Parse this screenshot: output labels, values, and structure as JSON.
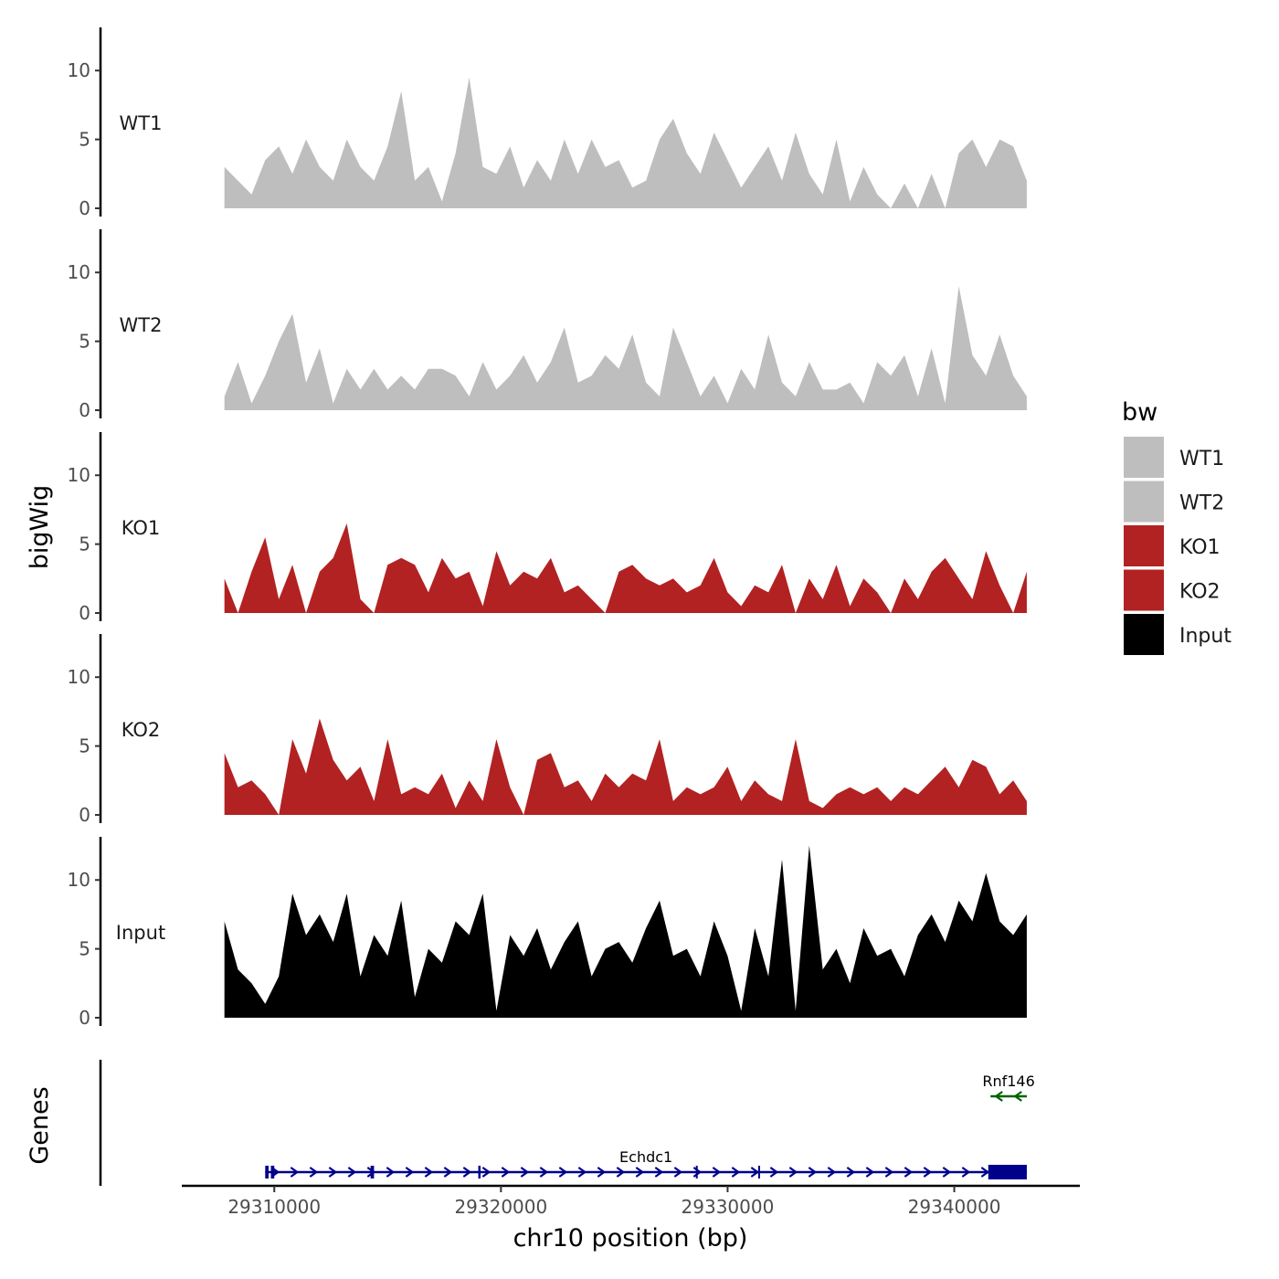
{
  "chart_data": {
    "type": "area",
    "title": "",
    "xlabel": "chr10 position (bp)",
    "ylabel": "bigWig",
    "gene_track_label": "Genes",
    "xlim": [
      29306000,
      29345500
    ],
    "ylim": [
      0,
      13
    ],
    "x_ticks": [
      29310000,
      29320000,
      29330000,
      29340000
    ],
    "x_tick_labels": [
      "29310000",
      "29320000",
      "29330000",
      "29340000"
    ],
    "y_ticks": [
      0,
      5,
      10
    ],
    "y_tick_labels": [
      "0",
      "5",
      "10"
    ],
    "x": [
      29307800,
      29308400,
      29309000,
      29309600,
      29310200,
      29310800,
      29311400,
      29312000,
      29312600,
      29313200,
      29313800,
      29314400,
      29315000,
      29315600,
      29316200,
      29316800,
      29317400,
      29318000,
      29318600,
      29319200,
      29319800,
      29320400,
      29321000,
      29321600,
      29322200,
      29322800,
      29323400,
      29324000,
      29324600,
      29325200,
      29325800,
      29326400,
      29327000,
      29327600,
      29328200,
      29328800,
      29329400,
      29330000,
      29330600,
      29331200,
      29331800,
      29332400,
      29333000,
      29333600,
      29334200,
      29334800,
      29335400,
      29336000,
      29336600,
      29337200,
      29337800,
      29338400,
      29339000,
      29339600,
      29340200,
      29340800,
      29341400,
      29342000,
      29342600,
      29343200
    ],
    "series": [
      {
        "name": "WT1",
        "color": "#bebebe",
        "values": [
          3.0,
          2.0,
          1.0,
          3.5,
          4.5,
          2.5,
          5.0,
          3.0,
          2.0,
          5.0,
          3.0,
          2.0,
          4.5,
          8.5,
          2.0,
          3.0,
          0.5,
          4.0,
          9.5,
          3.0,
          2.5,
          4.5,
          1.5,
          3.5,
          2.0,
          5.0,
          2.5,
          5.0,
          3.0,
          3.5,
          1.5,
          2.0,
          5.0,
          6.5,
          4.0,
          2.5,
          5.5,
          3.5,
          1.5,
          3.0,
          4.5,
          2.0,
          5.5,
          2.5,
          1.0,
          5.0,
          0.5,
          3.0,
          1.0,
          0.0,
          1.8,
          0.0,
          2.5,
          0.0,
          4.0,
          5.0,
          3.0,
          5.0,
          4.5,
          2.0
        ]
      },
      {
        "name": "WT2",
        "color": "#bebebe",
        "values": [
          1.0,
          3.5,
          0.5,
          2.5,
          5.0,
          7.0,
          2.0,
          4.5,
          0.5,
          3.0,
          1.5,
          3.0,
          1.5,
          2.5,
          1.5,
          3.0,
          3.0,
          2.5,
          1.0,
          3.5,
          1.5,
          2.5,
          4.0,
          2.0,
          3.5,
          6.0,
          2.0,
          2.5,
          4.0,
          3.0,
          5.5,
          2.0,
          1.0,
          6.0,
          3.5,
          1.0,
          2.5,
          0.5,
          3.0,
          1.5,
          5.5,
          2.0,
          1.0,
          3.5,
          1.5,
          1.5,
          2.0,
          0.5,
          3.5,
          2.5,
          4.0,
          1.0,
          4.5,
          0.5,
          9.0,
          4.0,
          2.5,
          5.5,
          2.5,
          1.0
        ]
      },
      {
        "name": "KO1",
        "color": "#b22222",
        "values": [
          2.5,
          0.0,
          3.0,
          5.5,
          1.0,
          3.5,
          0.0,
          3.0,
          4.0,
          6.5,
          1.0,
          0.0,
          3.5,
          4.0,
          3.5,
          1.5,
          4.0,
          2.5,
          3.0,
          0.5,
          4.5,
          2.0,
          3.0,
          2.5,
          4.0,
          1.5,
          2.0,
          1.0,
          0.0,
          3.0,
          3.5,
          2.5,
          2.0,
          2.5,
          1.5,
          2.0,
          4.0,
          1.5,
          0.5,
          2.0,
          1.5,
          3.5,
          0.0,
          2.5,
          1.0,
          3.5,
          0.5,
          2.5,
          1.5,
          0.0,
          2.5,
          1.0,
          3.0,
          4.0,
          2.5,
          1.0,
          4.5,
          2.0,
          0.0,
          3.0
        ]
      },
      {
        "name": "KO2",
        "color": "#b22222",
        "values": [
          4.5,
          2.0,
          2.5,
          1.5,
          0.0,
          5.5,
          3.0,
          7.0,
          4.0,
          2.5,
          3.5,
          1.0,
          5.5,
          1.5,
          2.0,
          1.5,
          3.0,
          0.5,
          2.5,
          1.0,
          5.5,
          2.0,
          0.0,
          4.0,
          4.5,
          2.0,
          2.5,
          1.0,
          3.0,
          2.0,
          3.0,
          2.5,
          5.5,
          1.0,
          2.0,
          1.5,
          2.0,
          3.5,
          1.0,
          2.5,
          1.5,
          1.0,
          5.5,
          1.0,
          0.5,
          1.5,
          2.0,
          1.5,
          2.0,
          1.0,
          2.0,
          1.5,
          2.5,
          3.5,
          2.0,
          4.0,
          3.5,
          1.5,
          2.5,
          1.0
        ]
      },
      {
        "name": "Input",
        "color": "#000000",
        "values": [
          7.0,
          3.5,
          2.5,
          1.0,
          3.0,
          9.0,
          6.0,
          7.5,
          5.5,
          9.0,
          3.0,
          6.0,
          4.5,
          8.5,
          1.5,
          5.0,
          4.0,
          7.0,
          6.0,
          9.0,
          0.5,
          6.0,
          4.5,
          6.5,
          3.5,
          5.5,
          7.0,
          3.0,
          5.0,
          5.5,
          4.0,
          6.5,
          8.5,
          4.5,
          5.0,
          3.0,
          7.0,
          4.5,
          0.5,
          6.5,
          3.0,
          11.5,
          0.5,
          12.5,
          3.5,
          5.0,
          2.5,
          6.5,
          4.5,
          5.0,
          3.0,
          6.0,
          7.5,
          5.5,
          8.5,
          7.0,
          10.5,
          7.0,
          6.0,
          7.5
        ]
      }
    ],
    "genes": [
      {
        "name": "Echdc1",
        "start": 29309600,
        "end": 29343200,
        "strand": "+",
        "color": "#00008b",
        "exons": [
          [
            29309600,
            29309750
          ],
          [
            29309850,
            29310000
          ],
          [
            29314250,
            29314400
          ],
          [
            29319000,
            29319100
          ],
          [
            29328600,
            29328650
          ],
          [
            29331350,
            29331400
          ],
          [
            29341500,
            29343200
          ]
        ]
      },
      {
        "name": "Rnf146",
        "start": 29341600,
        "end": 29343200,
        "strand": "-",
        "color": "#006400",
        "exons": []
      }
    ],
    "legend": {
      "title": "bw",
      "position": "right",
      "entries": [
        {
          "label": "WT1",
          "color": "#bebebe"
        },
        {
          "label": "WT2",
          "color": "#bebebe"
        },
        {
          "label": "KO1",
          "color": "#b22222"
        },
        {
          "label": "KO2",
          "color": "#b22222"
        },
        {
          "label": "Input",
          "color": "#000000"
        }
      ]
    }
  }
}
